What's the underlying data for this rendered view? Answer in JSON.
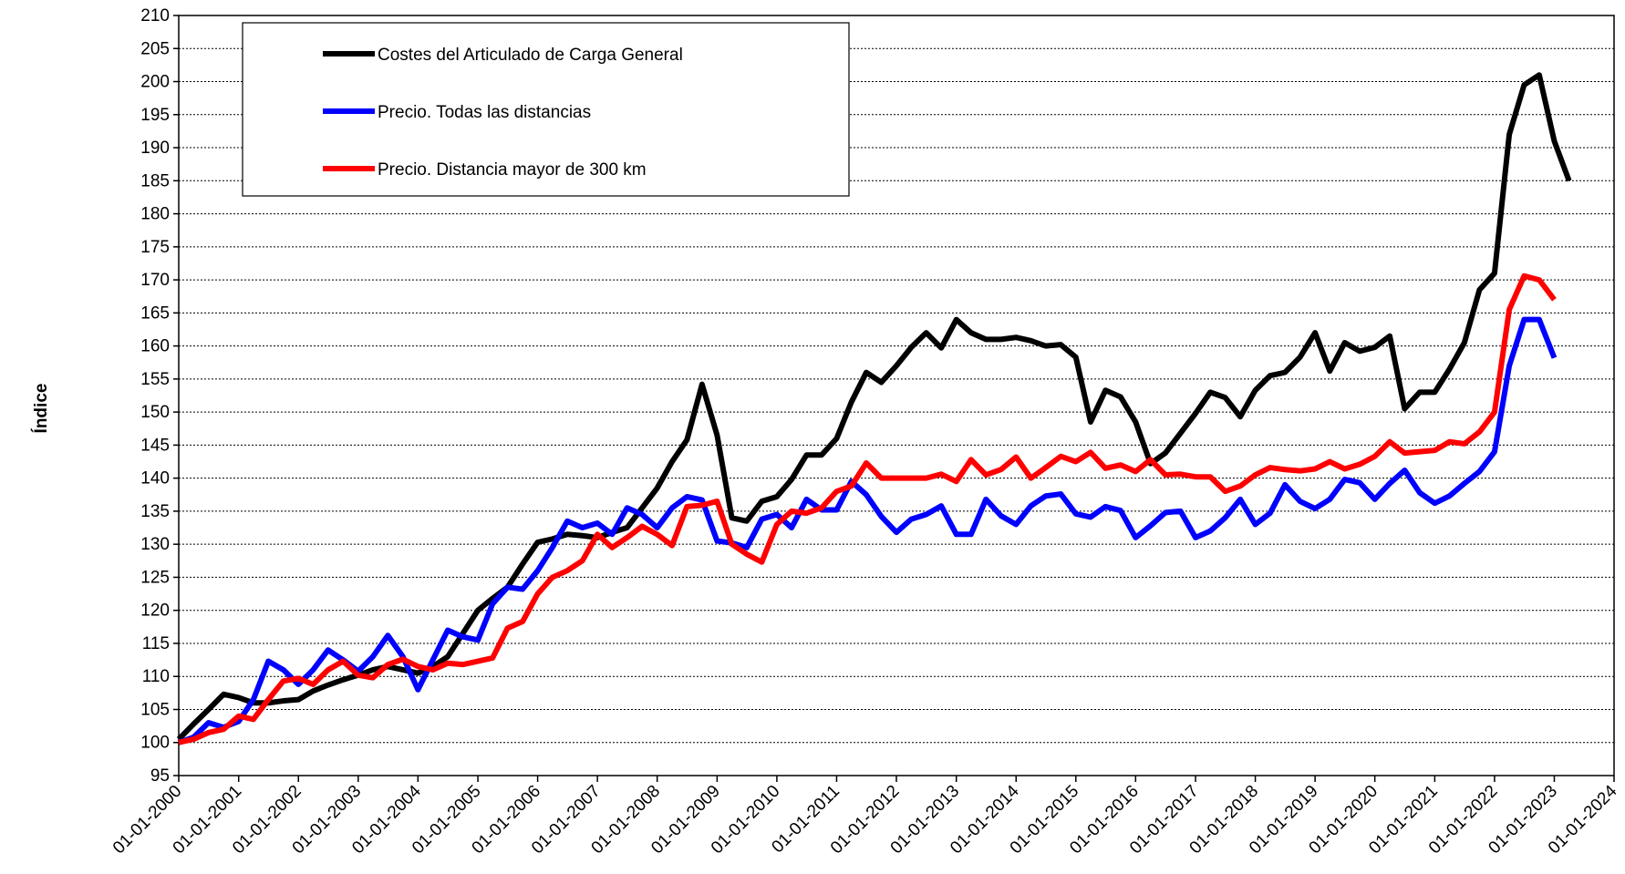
{
  "chart_data": {
    "type": "line",
    "y_label": "Índice",
    "x": [
      "01-01-2000",
      "01-04-2000",
      "01-07-2000",
      "01-10-2000",
      "01-01-2001",
      "01-04-2001",
      "01-07-2001",
      "01-10-2001",
      "01-01-2002",
      "01-04-2002",
      "01-07-2002",
      "01-10-2002",
      "01-01-2003",
      "01-04-2003",
      "01-07-2003",
      "01-10-2003",
      "01-01-2004",
      "01-04-2004",
      "01-07-2004",
      "01-10-2004",
      "01-01-2005",
      "01-04-2005",
      "01-07-2005",
      "01-10-2005",
      "01-01-2006",
      "01-04-2006",
      "01-07-2006",
      "01-10-2006",
      "01-01-2007",
      "01-04-2007",
      "01-07-2007",
      "01-10-2007",
      "01-01-2008",
      "01-04-2008",
      "01-07-2008",
      "01-10-2008",
      "01-01-2009",
      "01-04-2009",
      "01-07-2009",
      "01-10-2009",
      "01-01-2010",
      "01-04-2010",
      "01-07-2010",
      "01-10-2010",
      "01-01-2011",
      "01-04-2011",
      "01-07-2011",
      "01-10-2011",
      "01-01-2012",
      "01-04-2012",
      "01-07-2012",
      "01-10-2012",
      "01-01-2013",
      "01-04-2013",
      "01-07-2013",
      "01-10-2013",
      "01-01-2014",
      "01-04-2014",
      "01-07-2014",
      "01-10-2014",
      "01-01-2015",
      "01-04-2015",
      "01-07-2015",
      "01-10-2015",
      "01-01-2016",
      "01-04-2016",
      "01-07-2016",
      "01-10-2016",
      "01-01-2017",
      "01-04-2017",
      "01-07-2017",
      "01-10-2017",
      "01-01-2018",
      "01-04-2018",
      "01-07-2018",
      "01-10-2018",
      "01-01-2019",
      "01-04-2019",
      "01-07-2019",
      "01-10-2019",
      "01-01-2020",
      "01-04-2020",
      "01-07-2020",
      "01-10-2020",
      "01-01-2021",
      "01-04-2021",
      "01-07-2021",
      "01-10-2021",
      "01-01-2022",
      "01-04-2022",
      "01-07-2022",
      "01-10-2022",
      "01-01-2023",
      "01-04-2023"
    ],
    "series": [
      {
        "name": "Costes del Articulado de Carga General",
        "color": "#000000",
        "values": [
          100.5,
          102.8,
          105,
          107.3,
          106.8,
          106,
          106,
          106.3,
          106.5,
          107.8,
          108.7,
          109.5,
          110.2,
          111,
          111.5,
          111,
          110.5,
          111.5,
          113,
          116.5,
          120,
          121.8,
          123.5,
          127,
          130.3,
          130.8,
          131.5,
          131.3,
          131,
          131.8,
          132.5,
          135.5,
          138.5,
          142.5,
          145.8,
          154.2,
          146.5,
          134,
          133.5,
          136.5,
          137.2,
          139.8,
          143.5,
          143.5,
          146,
          151.5,
          156,
          154.5,
          157,
          159.8,
          162,
          159.7,
          164,
          162,
          161,
          161,
          161.3,
          160.8,
          160,
          160.2,
          158.3,
          148.5,
          153.3,
          152.3,
          148.5,
          142.2,
          143.8,
          146.8,
          149.8,
          153,
          152.2,
          149.3,
          153.3,
          155.5,
          156,
          158.3,
          162,
          156.2,
          160.5,
          159.2,
          159.8,
          161.5,
          150.5,
          153,
          153,
          156.5,
          160.5,
          168.5,
          171,
          192,
          199.5,
          201,
          191,
          185
        ]
      },
      {
        "name": "Precio. Todas las distancias",
        "color": "#0000ff",
        "values": [
          100,
          100.8,
          103,
          102.3,
          103.2,
          106.5,
          112.3,
          111,
          108.8,
          111,
          114,
          112.5,
          110.8,
          113,
          116.2,
          113,
          108,
          112.5,
          117,
          116,
          115.5,
          121,
          123.5,
          123.2,
          126,
          129.5,
          133.5,
          132.5,
          133.2,
          131.5,
          135.5,
          134.5,
          132.5,
          135.5,
          137.2,
          136.7,
          130.5,
          130.2,
          129.5,
          133.8,
          134.5,
          132.5,
          136.8,
          135.2,
          135.2,
          139.5,
          137.5,
          134.2,
          131.8,
          133.8,
          134.5,
          135.8,
          131.5,
          131.5,
          136.8,
          134.3,
          133,
          135.8,
          137.3,
          137.6,
          134.6,
          134.1,
          135.7,
          135.1,
          131,
          132.8,
          134.8,
          135,
          131,
          132,
          134,
          136.8,
          133,
          134.7,
          139,
          136.5,
          135.4,
          136.8,
          139.8,
          139.3,
          136.8,
          139.2,
          141.2,
          137.8,
          136.2,
          137.3,
          139.2,
          141,
          144,
          157,
          164,
          164,
          158.2,
          null
        ]
      },
      {
        "name": "Precio. Distancia mayor de 300 km",
        "color": "#ff0000",
        "values": [
          100,
          100.5,
          101.5,
          102,
          104,
          103.5,
          106.5,
          109.3,
          109.7,
          108.8,
          111,
          112.3,
          110.2,
          109.8,
          111.8,
          112.6,
          111.5,
          111,
          112,
          111.8,
          112.3,
          112.8,
          117.3,
          118.3,
          122.5,
          125,
          126,
          127.5,
          131.5,
          129.5,
          131,
          132.7,
          131.5,
          129.8,
          135.7,
          135.9,
          136.5,
          130,
          128.5,
          127.3,
          133,
          135,
          134.7,
          135.5,
          138,
          138.8,
          142.3,
          140,
          140,
          140,
          140,
          140.6,
          139.5,
          142.8,
          140.5,
          141.3,
          143.2,
          140,
          141.6,
          143.3,
          142.5,
          143.9,
          141.5,
          142,
          141,
          142.8,
          140.5,
          140.6,
          140.2,
          140.2,
          138,
          138.8,
          140.5,
          141.6,
          141.3,
          141.1,
          141.4,
          142.5,
          141.4,
          142.1,
          143.3,
          145.5,
          143.8,
          144,
          144.2,
          145.5,
          145.2,
          147,
          150,
          165.5,
          170.6,
          170,
          167,
          null
        ]
      }
    ],
    "xlim": [
      "01-01-2000",
      "01-01-2024"
    ],
    "xticks": [
      "01-01-2000",
      "01-01-2001",
      "01-01-2002",
      "01-01-2003",
      "01-01-2004",
      "01-01-2005",
      "01-01-2006",
      "01-01-2007",
      "01-01-2008",
      "01-01-2009",
      "01-01-2010",
      "01-01-2011",
      "01-01-2012",
      "01-01-2013",
      "01-01-2014",
      "01-01-2015",
      "01-01-2016",
      "01-01-2017",
      "01-01-2018",
      "01-01-2019",
      "01-01-2020",
      "01-01-2021",
      "01-01-2022",
      "01-01-2023",
      "01-01-2024"
    ],
    "ylim": [
      95,
      210
    ],
    "yticks": [
      95,
      100,
      105,
      110,
      115,
      120,
      125,
      130,
      135,
      140,
      145,
      150,
      155,
      160,
      165,
      170,
      175,
      180,
      185,
      190,
      195,
      200,
      205,
      210
    ],
    "grid": true
  }
}
